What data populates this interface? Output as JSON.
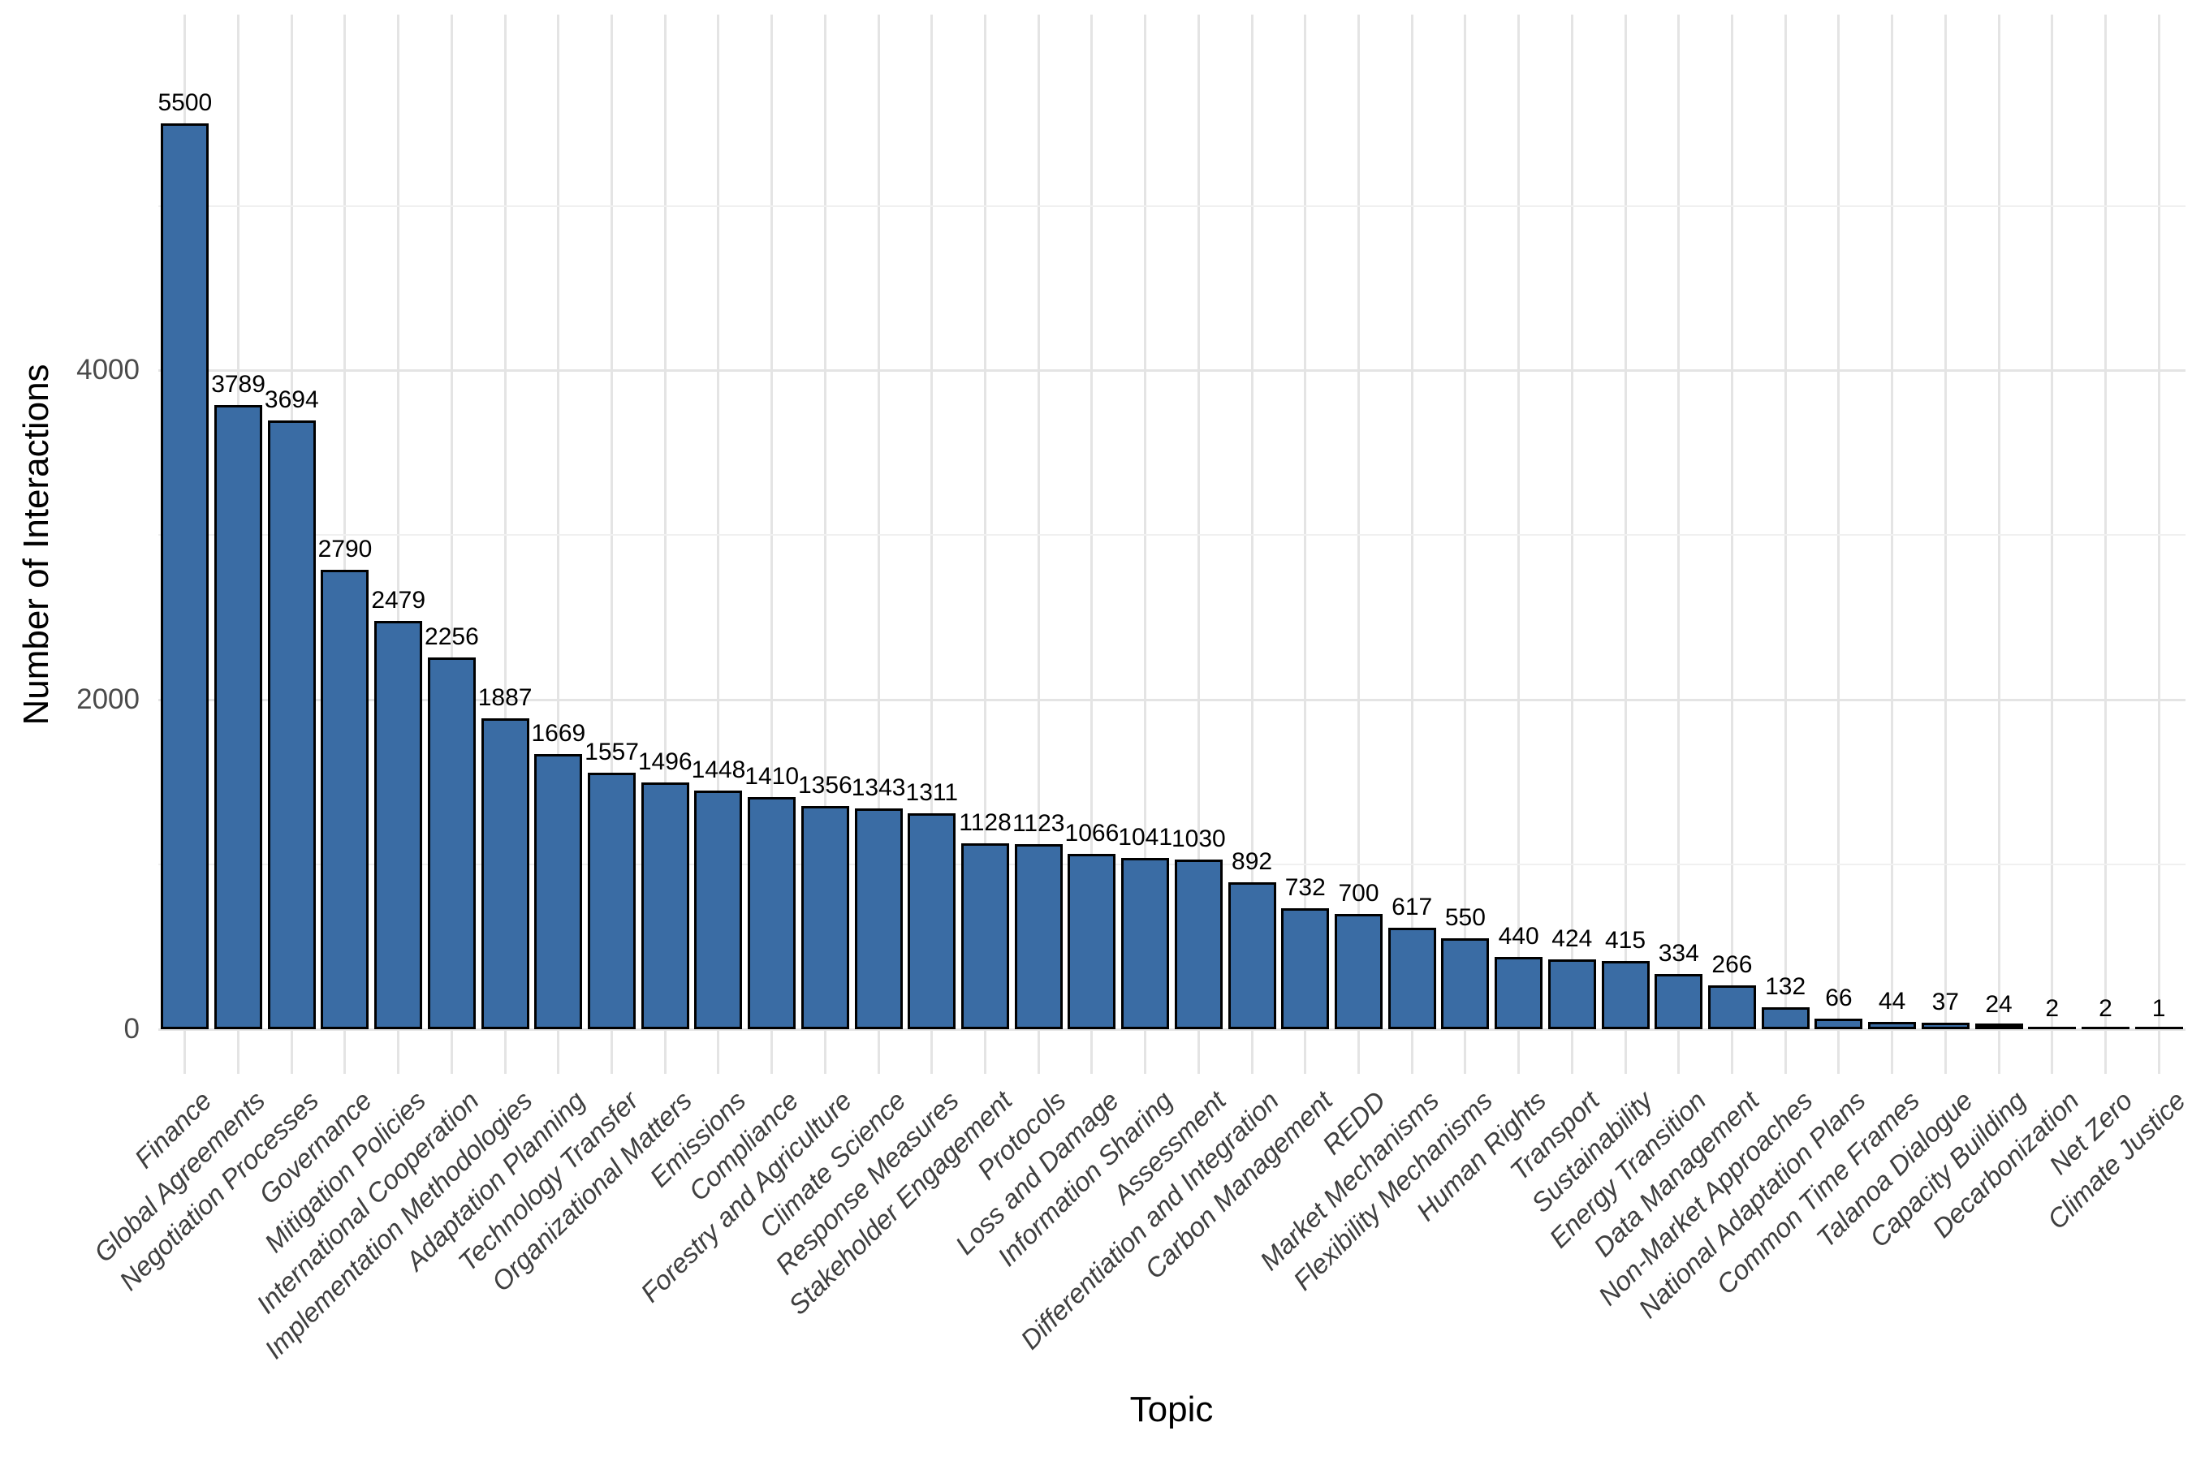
{
  "chart_data": {
    "type": "bar",
    "title": "",
    "xlabel": "Topic",
    "ylabel": "Number of Interactions",
    "categories": [
      "Finance",
      "Global Agreements",
      "Negotiation Processes",
      "Governance",
      "Mitigation Policies",
      "International Cooperation",
      "Implementation Methodologies",
      "Adaptation Planning",
      "Technology Transfer",
      "Organizational Matters",
      "Emissions",
      "Compliance",
      "Forestry and Agriculture",
      "Climate Science",
      "Response Measures",
      "Stakeholder Engagement",
      "Protocols",
      "Loss and Damage",
      "Information Sharing",
      "Assessment",
      "Differentiation and Integration",
      "Carbon Management",
      "REDD",
      "Market Mechanisms",
      "Flexibility Mechanisms",
      "Human Rights",
      "Transport",
      "Sustainability",
      "Energy Transition",
      "Data Management",
      "Non-Market Approaches",
      "National Adaptation Plans",
      "Common Time Frames",
      "Talanoa Dialogue",
      "Capacity Building",
      "Decarbonization",
      "Net Zero",
      "Climate Justice"
    ],
    "values": [
      5500,
      3789,
      3694,
      2790,
      2479,
      2256,
      1887,
      1669,
      1557,
      1496,
      1448,
      1410,
      1356,
      1343,
      1311,
      1128,
      1123,
      1066,
      1041,
      1030,
      892,
      732,
      700,
      617,
      550,
      440,
      424,
      415,
      334,
      266,
      132,
      66,
      44,
      37,
      24,
      2,
      2,
      1
    ],
    "ylim": [
      0,
      5775
    ],
    "yticks": [
      0,
      2000,
      4000
    ],
    "yticks_minor": [
      1000,
      3000,
      5000
    ],
    "grid": "on",
    "legend": "none",
    "bar_fill_color": "#3A6CA4",
    "bar_border_color": "#000000",
    "grid_major_color": "#E4E4E4",
    "grid_minor_color": "#F0F0F0"
  }
}
